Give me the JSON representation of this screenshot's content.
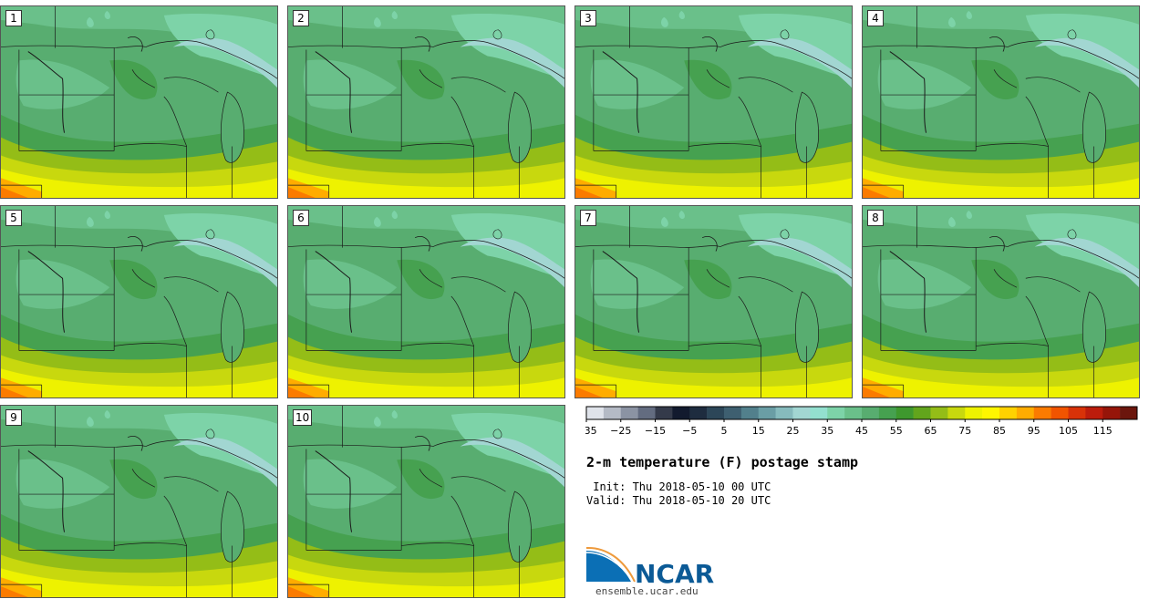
{
  "panels": [
    {
      "label": "1"
    },
    {
      "label": "2"
    },
    {
      "label": "3"
    },
    {
      "label": "4"
    },
    {
      "label": "5"
    },
    {
      "label": "6"
    },
    {
      "label": "7"
    },
    {
      "label": "8"
    },
    {
      "label": "9"
    },
    {
      "label": "10"
    }
  ],
  "colorbar": {
    "tick_labels": [
      "−35",
      "−25",
      "−15",
      "−5",
      "5",
      "15",
      "25",
      "35",
      "45",
      "55",
      "65",
      "75",
      "85",
      "95",
      "105",
      "115"
    ],
    "colors": [
      "#dfe3ea",
      "#b4bac5",
      "#8b93a3",
      "#636c80",
      "#343a4a",
      "#121a2e",
      "#1e2c3f",
      "#2c4658",
      "#3e5f70",
      "#52808c",
      "#6a9ea5",
      "#86bbbd",
      "#a2d6d2",
      "#93e0cf",
      "#7dd3a8",
      "#6ac08a",
      "#58ad70",
      "#46a150",
      "#3e982e",
      "#62a51c",
      "#94bd17",
      "#c8d80e",
      "#eef200",
      "#fff600",
      "#ffd200",
      "#ffac00",
      "#fb7b00",
      "#f15400",
      "#d83208",
      "#bc1c0c",
      "#961509",
      "#6b160d"
    ]
  },
  "title": "2-m temperature (F) postage stamp",
  "init": " Init: Thu 2018-05-10 00 UTC",
  "valid": "Valid: Thu 2018-05-10 20 UTC",
  "logo_text": "NCAR",
  "site": "ensemble.ucar.edu"
}
